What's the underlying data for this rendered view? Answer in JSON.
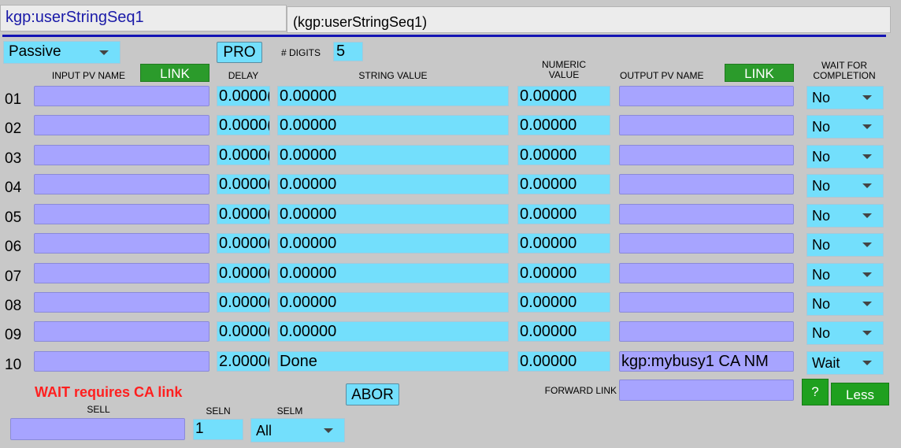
{
  "header": {
    "record_name": "kgp:userStringSeq1",
    "record_desc": "(kgp:userStringSeq1)"
  },
  "controls": {
    "scan": "Passive",
    "proc_label": "PRO",
    "digits_label": "# DIGITS",
    "digits_value": "5"
  },
  "columns": {
    "input_pv": "INPUT PV NAME",
    "input_link": "LINK",
    "delay": "DELAY",
    "string_value": "STRING VALUE",
    "numeric_value_1": "NUMERIC",
    "numeric_value_2": "VALUE",
    "output_pv": "OUTPUT PV NAME",
    "output_link": "LINK",
    "wait_1": "WAIT FOR",
    "wait_2": "COMPLETION"
  },
  "rows": [
    {
      "num": "01",
      "delay": "0.0000(",
      "string": "0.00000",
      "numeric": "0.00000",
      "output_pv": "",
      "wait": "No"
    },
    {
      "num": "02",
      "delay": "0.0000(",
      "string": "0.00000",
      "numeric": "0.00000",
      "output_pv": "",
      "wait": "No"
    },
    {
      "num": "03",
      "delay": "0.0000(",
      "string": "0.00000",
      "numeric": "0.00000",
      "output_pv": "",
      "wait": "No"
    },
    {
      "num": "04",
      "delay": "0.0000(",
      "string": "0.00000",
      "numeric": "0.00000",
      "output_pv": "",
      "wait": "No"
    },
    {
      "num": "05",
      "delay": "0.0000(",
      "string": "0.00000",
      "numeric": "0.00000",
      "output_pv": "",
      "wait": "No"
    },
    {
      "num": "06",
      "delay": "0.0000(",
      "string": "0.00000",
      "numeric": "0.00000",
      "output_pv": "",
      "wait": "No"
    },
    {
      "num": "07",
      "delay": "0.0000(",
      "string": "0.00000",
      "numeric": "0.00000",
      "output_pv": "",
      "wait": "No"
    },
    {
      "num": "08",
      "delay": "0.0000(",
      "string": "0.00000",
      "numeric": "0.00000",
      "output_pv": "",
      "wait": "No"
    },
    {
      "num": "09",
      "delay": "0.0000(",
      "string": "0.00000",
      "numeric": "0.00000",
      "output_pv": "",
      "wait": "No"
    },
    {
      "num": "10",
      "delay": "2.0000(",
      "string": "Done",
      "numeric": "0.00000",
      "output_pv": "kgp:mybusy1 CA NM",
      "wait": "Wait"
    }
  ],
  "footer": {
    "warning": "WAIT requires CA link",
    "abort_label": "ABOR",
    "forward_link_label": "FORWARD LINK",
    "help_label": "?",
    "less_label": "Less",
    "sell_label": "SELL",
    "seln_label": "SELN",
    "seln_value": "1",
    "selm_label": "SELM",
    "selm_value": "All"
  },
  "colors": {
    "background": "#c8c8c8",
    "cyan": "#73dffc",
    "pv_purple": "#a7a4ff",
    "link_green": "#2b9b2b",
    "warning_red": "#ff1f1f",
    "title_blue": "#1a1aa8"
  }
}
